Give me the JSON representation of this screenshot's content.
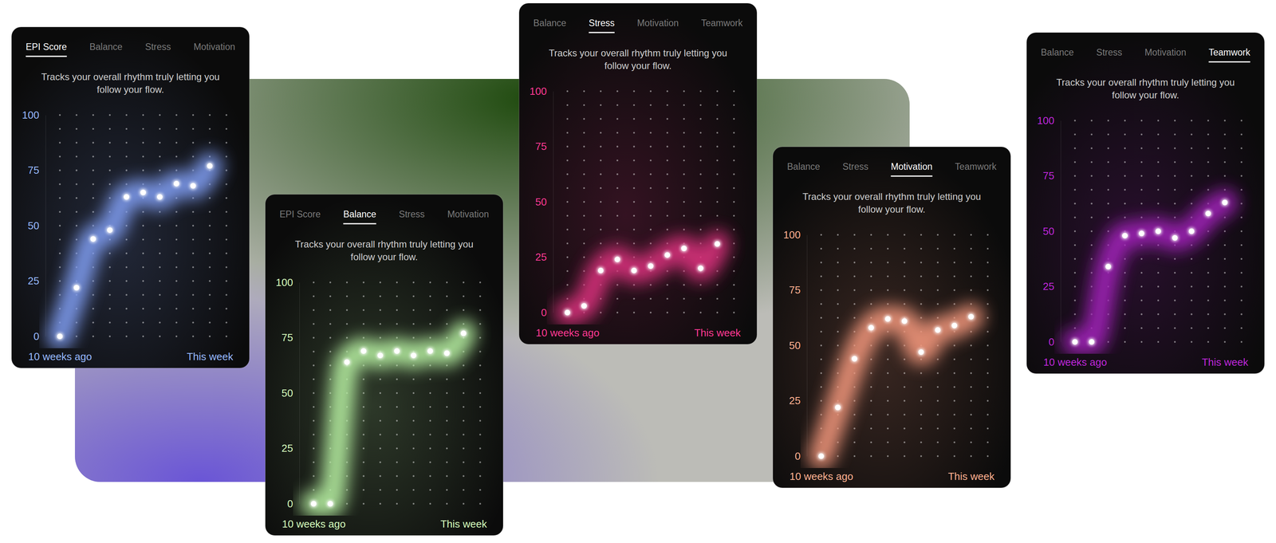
{
  "chart_data": [
    {
      "type": "line",
      "title": "EPI Score",
      "tabs": [
        "EPI Score",
        "Balance",
        "Stress",
        "Motivation"
      ],
      "subtitle": "Tracks your overall rhythm truly letting you follow your flow.",
      "categories": [
        "10 weeks ago",
        null,
        null,
        null,
        null,
        null,
        null,
        null,
        null,
        "This week"
      ],
      "values": [
        0,
        22,
        44,
        48,
        63,
        65,
        63,
        69,
        68,
        77
      ],
      "color": "#7f9cf0",
      "marker": "circle",
      "ylim": [
        0,
        100
      ],
      "yticks": [
        0,
        25,
        50,
        75,
        100
      ],
      "grid": true
    },
    {
      "type": "line",
      "title": "Balance",
      "tabs": [
        "EPI Score",
        "Balance",
        "Stress",
        "Motivation"
      ],
      "subtitle": "Tracks your overall rhythm truly letting you follow your flow.",
      "categories": [
        "10 weeks ago",
        null,
        null,
        null,
        null,
        null,
        null,
        null,
        null,
        "This week"
      ],
      "values": [
        0,
        0,
        64,
        69,
        67,
        69,
        67,
        69,
        68,
        77
      ],
      "color": "#b5eea0",
      "marker": "circle",
      "ylim": [
        0,
        100
      ],
      "yticks": [
        0,
        25,
        50,
        75,
        100
      ],
      "grid": true
    },
    {
      "type": "line",
      "title": "Stress",
      "tabs": [
        "Balance",
        "Stress",
        "Motivation",
        "Teamwork"
      ],
      "subtitle": "Tracks your overall rhythm truly letting you follow your flow.",
      "categories": [
        "10 weeks ago",
        null,
        null,
        null,
        null,
        null,
        null,
        null,
        null,
        "This week"
      ],
      "values": [
        0,
        3,
        19,
        24,
        19,
        21,
        26,
        29,
        20,
        31
      ],
      "color": "#d8307c",
      "marker": "circle",
      "ylim": [
        0,
        100
      ],
      "yticks": [
        0,
        25,
        50,
        75,
        100
      ],
      "grid": true
    },
    {
      "type": "line",
      "title": "Motivation",
      "tabs": [
        "Balance",
        "Stress",
        "Motivation",
        "Teamwork"
      ],
      "subtitle": "Tracks your overall rhythm truly letting you follow your flow.",
      "categories": [
        "10 weeks ago",
        null,
        null,
        null,
        null,
        null,
        null,
        null,
        null,
        "This week"
      ],
      "values": [
        0,
        22,
        44,
        58,
        62,
        61,
        47,
        57,
        59,
        63
      ],
      "color": "#f0957a",
      "marker": "circle",
      "ylim": [
        0,
        100
      ],
      "yticks": [
        0,
        25,
        50,
        75,
        100
      ],
      "grid": true
    },
    {
      "type": "line",
      "title": "Teamwork",
      "tabs": [
        "Balance",
        "Stress",
        "Motivation",
        "Teamwork"
      ],
      "subtitle": "Tracks your overall rhythm truly letting you follow your flow.",
      "categories": [
        "10 weeks ago",
        null,
        null,
        null,
        null,
        null,
        null,
        null,
        null,
        "This week"
      ],
      "values": [
        0,
        0,
        34,
        48,
        49,
        50,
        47,
        50,
        58,
        63
      ],
      "color": "#a020b8",
      "marker": "circle",
      "ylim": [
        0,
        100
      ],
      "yticks": [
        0,
        25,
        50,
        75,
        100
      ],
      "grid": true
    }
  ]
}
